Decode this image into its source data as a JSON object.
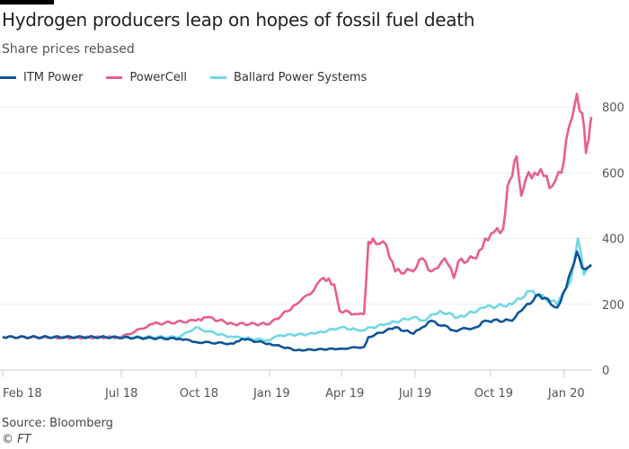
{
  "header": {
    "title": "Hydrogen producers leap on hopes of fossil fuel death",
    "subtitle": "Share prices rebased"
  },
  "footer": {
    "source": "Source: Bloomberg",
    "copyright": "© FT"
  },
  "chart_data": {
    "type": "line",
    "title": "Hydrogen producers leap on hopes of fossil fuel death",
    "subtitle": "Share prices rebased",
    "xlabel": "",
    "ylabel": "",
    "x_unit": "months since Feb 2018",
    "xlim": [
      0,
      24.1
    ],
    "ylim": [
      0,
      850
    ],
    "yticks": [
      0,
      200,
      400,
      600,
      800
    ],
    "xticks": [
      {
        "m": 0,
        "label": "Feb 18"
      },
      {
        "m": 4.86,
        "label": "Jul 18"
      },
      {
        "m": 7.91,
        "label": "Oct 18"
      },
      {
        "m": 10.93,
        "label": "Jan 19"
      },
      {
        "m": 13.88,
        "label": "Apr 19"
      },
      {
        "m": 16.89,
        "label": "Jul 19"
      },
      {
        "m": 19.98,
        "label": "Oct 19"
      },
      {
        "m": 23,
        "label": "Jan 20"
      }
    ],
    "grid": true,
    "legend": "top-left",
    "series": [
      {
        "name": "PowerCell",
        "color": "#e95d8c",
        "points": [
          [
            0,
            100
          ],
          [
            2,
            98
          ],
          [
            4.86,
            100
          ],
          [
            6.15,
            140
          ],
          [
            7.91,
            150
          ],
          [
            8.35,
            160
          ],
          [
            9.46,
            140
          ],
          [
            10.93,
            140
          ],
          [
            12.03,
            200
          ],
          [
            12.59,
            230
          ],
          [
            13.14,
            280
          ],
          [
            13.58,
            260
          ],
          [
            13.8,
            180
          ],
          [
            14.54,
            170
          ],
          [
            14.8,
            170
          ],
          [
            14.98,
            390
          ],
          [
            15.16,
            400
          ],
          [
            15.72,
            380
          ],
          [
            16.08,
            300
          ],
          [
            16.82,
            300
          ],
          [
            17.19,
            340
          ],
          [
            17.56,
            300
          ],
          [
            18.1,
            340
          ],
          [
            18.48,
            280
          ],
          [
            18.66,
            330
          ],
          [
            19.4,
            340
          ],
          [
            19.76,
            400
          ],
          [
            20.13,
            420
          ],
          [
            20.5,
            430
          ],
          [
            20.68,
            560
          ],
          [
            20.87,
            590
          ],
          [
            21.05,
            650
          ],
          [
            21.24,
            530
          ],
          [
            21.42,
            580
          ],
          [
            21.79,
            600
          ],
          [
            22.16,
            590
          ],
          [
            22.52,
            560
          ],
          [
            22.89,
            600
          ],
          [
            23.08,
            700
          ],
          [
            23.33,
            770
          ],
          [
            23.52,
            840
          ],
          [
            23.74,
            780
          ],
          [
            23.89,
            660
          ],
          [
            24.0,
            700
          ],
          [
            24.11,
            770
          ]
        ]
      },
      {
        "name": "Ballard Power Systems",
        "color": "#6fd8e6",
        "points": [
          [
            0,
            100
          ],
          [
            4,
            100
          ],
          [
            7.25,
            100
          ],
          [
            7.91,
            130
          ],
          [
            8.72,
            110
          ],
          [
            9.46,
            100
          ],
          [
            10.93,
            90
          ],
          [
            11.3,
            105
          ],
          [
            12.77,
            110
          ],
          [
            13.88,
            130
          ],
          [
            14.61,
            120
          ],
          [
            15.72,
            140
          ],
          [
            16.82,
            160
          ],
          [
            17.19,
            150
          ],
          [
            17.92,
            180
          ],
          [
            18.66,
            160
          ],
          [
            19.76,
            190
          ],
          [
            20.87,
            200
          ],
          [
            21.6,
            240
          ],
          [
            22.71,
            200
          ],
          [
            23.26,
            270
          ],
          [
            23.56,
            400
          ],
          [
            23.81,
            290
          ],
          [
            24.11,
            320
          ]
        ]
      },
      {
        "name": "ITM Power",
        "color": "#0f5499",
        "points": [
          [
            0,
            100
          ],
          [
            4,
            100
          ],
          [
            7.25,
            95
          ],
          [
            7.91,
            85
          ],
          [
            9.46,
            80
          ],
          [
            9.8,
            95
          ],
          [
            10.93,
            80
          ],
          [
            12.03,
            60
          ],
          [
            13.88,
            65
          ],
          [
            14.8,
            70
          ],
          [
            14.98,
            100
          ],
          [
            16.08,
            130
          ],
          [
            16.82,
            110
          ],
          [
            17.19,
            130
          ],
          [
            17.56,
            150
          ],
          [
            18.48,
            120
          ],
          [
            19.4,
            130
          ],
          [
            19.76,
            150
          ],
          [
            20.87,
            150
          ],
          [
            21.24,
            180
          ],
          [
            21.97,
            230
          ],
          [
            22.71,
            190
          ],
          [
            23.08,
            250
          ],
          [
            23.52,
            360
          ],
          [
            23.74,
            310
          ],
          [
            24.11,
            320
          ]
        ]
      }
    ]
  }
}
